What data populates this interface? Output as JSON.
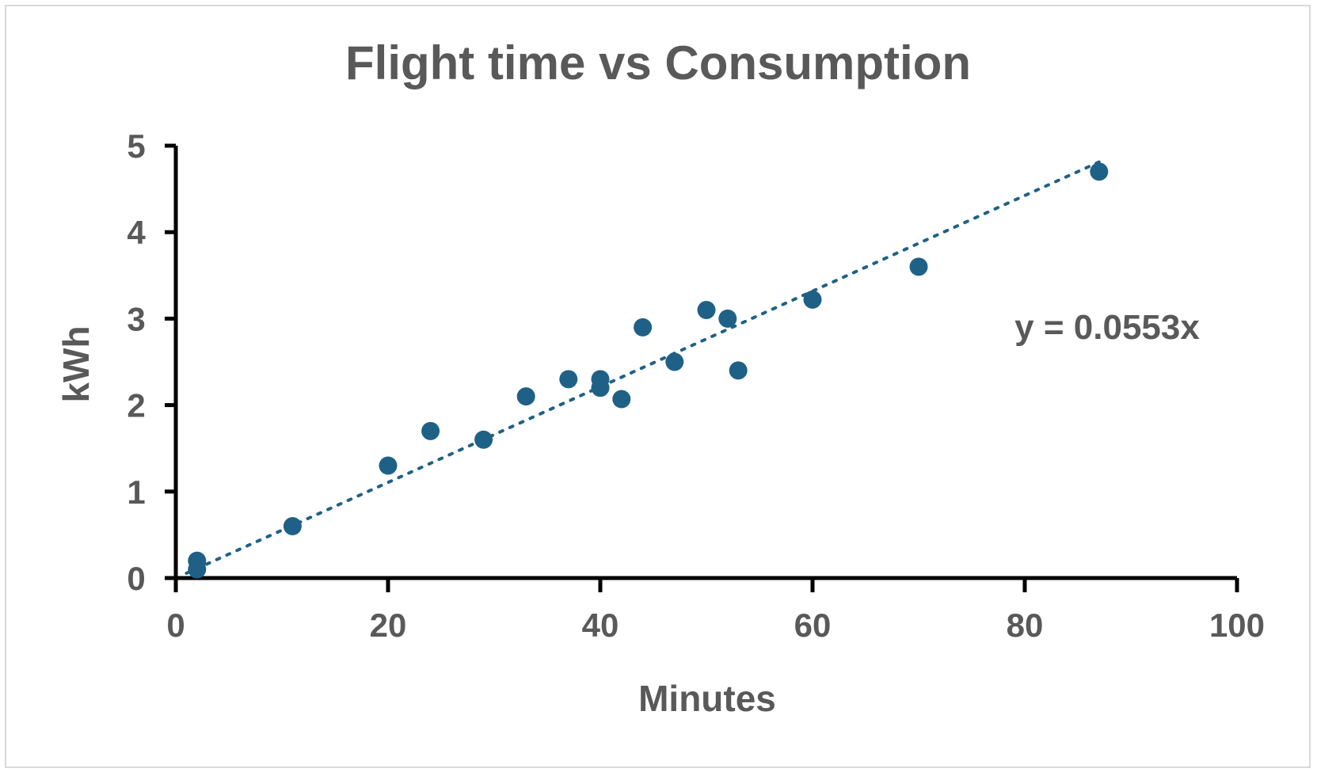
{
  "chart_data": {
    "type": "scatter",
    "title": "Flight time vs Consumption",
    "xlabel": "Minutes",
    "ylabel": "kWh",
    "xlim": [
      0,
      100
    ],
    "ylim": [
      0,
      5
    ],
    "xticks": [
      0,
      20,
      40,
      60,
      80,
      100
    ],
    "yticks": [
      0,
      1,
      2,
      3,
      4,
      5
    ],
    "grid": false,
    "legend": "none",
    "series": [
      {
        "color": "#1f6186",
        "points": [
          {
            "x": 2,
            "y": 0.2
          },
          {
            "x": 2,
            "y": 0.1
          },
          {
            "x": 11,
            "y": 0.6
          },
          {
            "x": 20,
            "y": 1.3
          },
          {
            "x": 24,
            "y": 1.7
          },
          {
            "x": 29,
            "y": 1.6
          },
          {
            "x": 33,
            "y": 2.1
          },
          {
            "x": 37,
            "y": 2.3
          },
          {
            "x": 40,
            "y": 2.3
          },
          {
            "x": 40,
            "y": 2.2
          },
          {
            "x": 42,
            "y": 2.07
          },
          {
            "x": 44,
            "y": 2.9
          },
          {
            "x": 47,
            "y": 2.5
          },
          {
            "x": 50,
            "y": 3.1
          },
          {
            "x": 52,
            "y": 3.0
          },
          {
            "x": 53,
            "y": 2.4
          },
          {
            "x": 60,
            "y": 3.22
          },
          {
            "x": 70,
            "y": 3.6
          },
          {
            "x": 87,
            "y": 4.7
          }
        ]
      }
    ],
    "trendline": {
      "type": "linear-through-origin",
      "slope": 0.0553,
      "x_range": [
        1,
        87
      ],
      "style": "dotted",
      "color": "#1f6186",
      "equation_label": "y = 0.0553x"
    }
  }
}
